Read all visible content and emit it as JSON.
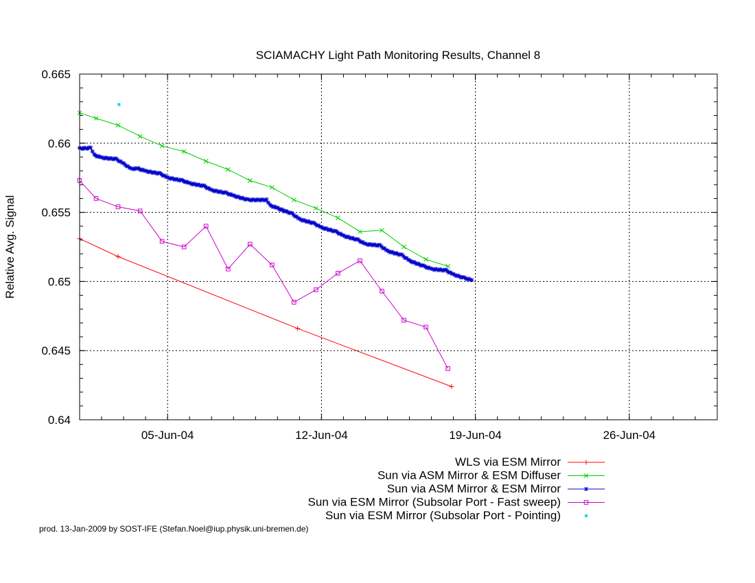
{
  "chart_data": {
    "type": "line",
    "title": "SCIAMACHY Light Path Monitoring Results, Channel 8",
    "xlabel": "",
    "ylabel": "Relative Avg. Signal",
    "xlim": [
      "2004-06-01",
      "2004-06-30"
    ],
    "ylim": [
      0.64,
      0.665
    ],
    "y_ticks": [
      0.64,
      0.645,
      0.65,
      0.655,
      0.66,
      0.665
    ],
    "y_tick_labels": [
      "0.64",
      "0.645",
      "0.65",
      "0.655",
      "0.66",
      "0.665"
    ],
    "x_ticks": [
      "2004-06-05",
      "2004-06-12",
      "2004-06-19",
      "2004-06-26"
    ],
    "x_tick_labels": [
      "05-Jun-04",
      "12-Jun-04",
      "19-Jun-04",
      "26-Jun-04"
    ],
    "grid": true,
    "legend_position": "below",
    "series": [
      {
        "name": "WLS via ESM Mirror",
        "color": "#ff0000",
        "marker": "plus",
        "line": true,
        "points": [
          [
            "2004-06-01 00:00",
            0.6531
          ],
          [
            "2004-06-02 18:00",
            0.6518
          ],
          [
            "2004-06-10 22:00",
            0.6466
          ],
          [
            "2004-06-17 22:00",
            0.6424
          ]
        ]
      },
      {
        "name": "Sun via ASM Mirror & ESM Diffuser",
        "color": "#00cc00",
        "marker": "cross",
        "line": true,
        "points": [
          [
            "2004-06-01 00:00",
            0.6622
          ],
          [
            "2004-06-01 18:00",
            0.6618
          ],
          [
            "2004-06-02 18:00",
            0.6613
          ],
          [
            "2004-06-03 18:00",
            0.6605
          ],
          [
            "2004-06-04 18:00",
            0.6598
          ],
          [
            "2004-06-05 18:00",
            0.6594
          ],
          [
            "2004-06-06 18:00",
            0.6587
          ],
          [
            "2004-06-07 18:00",
            0.6581
          ],
          [
            "2004-06-08 18:00",
            0.6573
          ],
          [
            "2004-06-09 18:00",
            0.6568
          ],
          [
            "2004-06-10 18:00",
            0.6559
          ],
          [
            "2004-06-11 18:00",
            0.6553
          ],
          [
            "2004-06-12 18:00",
            0.6546
          ],
          [
            "2004-06-13 18:00",
            0.6536
          ],
          [
            "2004-06-14 18:00",
            0.6537
          ],
          [
            "2004-06-15 18:00",
            0.6525
          ],
          [
            "2004-06-16 18:00",
            0.6516
          ],
          [
            "2004-06-17 18:00",
            0.6511
          ]
        ]
      },
      {
        "name": "Sun via ASM Mirror & ESM Mirror",
        "color": "#0000cc",
        "marker": "star",
        "line": true,
        "dense": true,
        "points": [
          [
            "2004-06-01 00:00",
            0.65962
          ],
          [
            "2004-06-01 12:00",
            0.65965
          ],
          [
            "2004-06-01 16:00",
            0.65915
          ],
          [
            "2004-06-02 00:00",
            0.65895
          ],
          [
            "2004-06-02 16:00",
            0.65885
          ],
          [
            "2004-06-03 00:00",
            0.65852
          ],
          [
            "2004-06-03 08:00",
            0.65815
          ],
          [
            "2004-06-03 16:00",
            0.65816
          ],
          [
            "2004-06-04 00:00",
            0.65798
          ],
          [
            "2004-06-04 16:00",
            0.6578
          ],
          [
            "2004-06-05 00:00",
            0.6575
          ],
          [
            "2004-06-05 16:00",
            0.6573
          ],
          [
            "2004-06-06 00:00",
            0.6571
          ],
          [
            "2004-06-06 16:00",
            0.6569
          ],
          [
            "2004-06-07 00:00",
            0.6566
          ],
          [
            "2004-06-07 16:00",
            0.6564
          ],
          [
            "2004-06-08 00:00",
            0.6562
          ],
          [
            "2004-06-08 16:00",
            0.6559
          ],
          [
            "2004-06-09 12:00",
            0.6559
          ],
          [
            "2004-06-09 16:00",
            0.6555
          ],
          [
            "2004-06-10 00:00",
            0.6553
          ],
          [
            "2004-06-10 16:00",
            0.6549
          ],
          [
            "2004-06-11 00:00",
            0.6545
          ],
          [
            "2004-06-11 16:00",
            0.6542
          ],
          [
            "2004-06-12 00:00",
            0.6539
          ],
          [
            "2004-06-12 16:00",
            0.6536
          ],
          [
            "2004-06-13 00:00",
            0.6533
          ],
          [
            "2004-06-13 16:00",
            0.653
          ],
          [
            "2004-06-14 00:00",
            0.6527
          ],
          [
            "2004-06-14 16:00",
            0.6526
          ],
          [
            "2004-06-15 00:00",
            0.6522
          ],
          [
            "2004-06-15 16:00",
            0.6519
          ],
          [
            "2004-06-16 00:00",
            0.6515
          ],
          [
            "2004-06-16 16:00",
            0.6511
          ],
          [
            "2004-06-17 00:00",
            0.6509
          ],
          [
            "2004-06-17 16:00",
            0.6508
          ],
          [
            "2004-06-18 00:00",
            0.6505
          ],
          [
            "2004-06-18 12:00",
            0.65025
          ],
          [
            "2004-06-18 20:00",
            0.6501
          ]
        ]
      },
      {
        "name": "Sun via ESM Mirror (Subsolar Port - Fast sweep)",
        "color": "#cc00cc",
        "marker": "square",
        "line": true,
        "points": [
          [
            "2004-06-01 00:00",
            0.6573
          ],
          [
            "2004-06-01 18:00",
            0.656
          ],
          [
            "2004-06-02 18:00",
            0.6554
          ],
          [
            "2004-06-03 18:00",
            0.6551
          ],
          [
            "2004-06-04 18:00",
            0.6529
          ],
          [
            "2004-06-05 18:00",
            0.6525
          ],
          [
            "2004-06-06 18:00",
            0.654
          ],
          [
            "2004-06-07 18:00",
            0.6509
          ],
          [
            "2004-06-08 18:00",
            0.6527
          ],
          [
            "2004-06-09 18:00",
            0.6512
          ],
          [
            "2004-06-10 18:00",
            0.6485
          ],
          [
            "2004-06-11 18:00",
            0.6494
          ],
          [
            "2004-06-12 18:00",
            0.6506
          ],
          [
            "2004-06-13 18:00",
            0.6515
          ],
          [
            "2004-06-14 18:00",
            0.6493
          ],
          [
            "2004-06-15 18:00",
            0.6472
          ],
          [
            "2004-06-16 18:00",
            0.6467
          ],
          [
            "2004-06-17 18:00",
            0.6437
          ]
        ]
      },
      {
        "name": "Sun via ESM Mirror (Subsolar Port - Pointing)",
        "color": "#00dddd",
        "marker": "dot",
        "line": false,
        "points": [
          [
            "2004-06-02 19:00",
            0.6628
          ]
        ]
      }
    ]
  },
  "footer": {
    "text": "prod. 13-Jan-2009 by SOST-IFE (Stefan.Noel@iup.physik.uni-bremen.de)"
  }
}
